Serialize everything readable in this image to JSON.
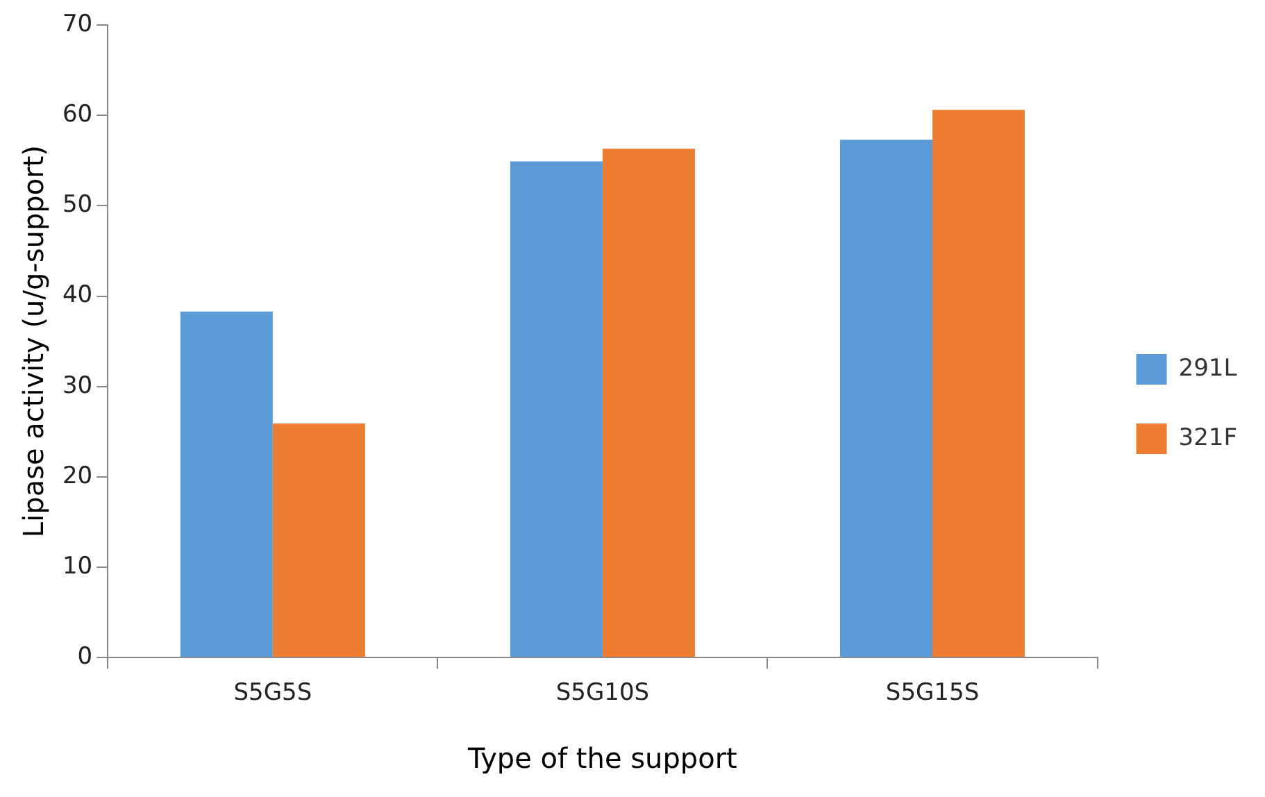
{
  "chart_data": {
    "type": "bar",
    "xlabel": "Type of the support",
    "ylabel": "Lipase activity (u/g-support)",
    "categories": [
      "S5G5S",
      "S5G10S",
      "S5G15S"
    ],
    "series": [
      {
        "name": "291L",
        "color": "#5b9bd5",
        "values": [
          38.3,
          54.9,
          57.3
        ]
      },
      {
        "name": "321F",
        "color": "#ed7d31",
        "values": [
          25.9,
          56.3,
          60.6
        ]
      }
    ],
    "ylim": [
      0,
      70
    ],
    "yticks": [
      0,
      10,
      20,
      30,
      40,
      50,
      60,
      70
    ],
    "grid": false,
    "legend": "right"
  }
}
